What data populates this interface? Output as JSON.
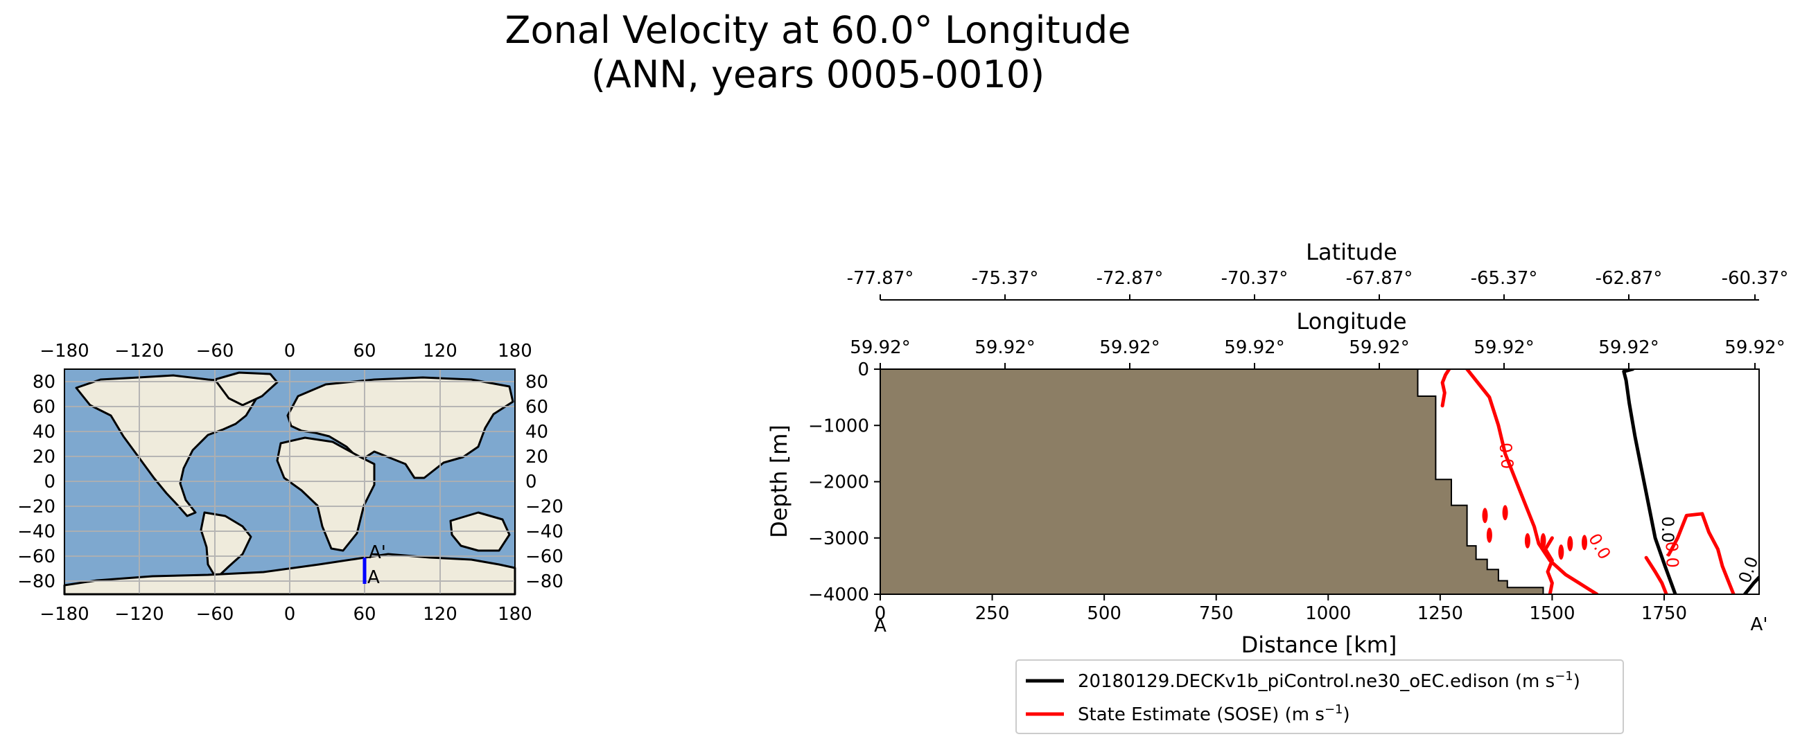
{
  "title": {
    "line1": "Zonal Velocity at 60.0° Longitude",
    "line2": "(ANN, years 0005-0010)"
  },
  "colors": {
    "ocean": "#7ea8cf",
    "land": "#efebdc",
    "transect": "#0000ff",
    "seafloor": "#8c7e65",
    "model_contour": "#000000",
    "obs_contour": "#ff0000",
    "grid": "#b0b0b0"
  },
  "map": {
    "x_ticks": [
      "−180",
      "−120",
      "−60",
      "0",
      "60",
      "120",
      "180"
    ],
    "y_ticks": [
      "80",
      "60",
      "40",
      "20",
      "0",
      "−20",
      "−40",
      "−60",
      "−80"
    ],
    "transect_start_label": "A",
    "transect_end_label": "A'",
    "transect_lon": 60,
    "transect_lat_start": -77.87,
    "transect_lat_end": -60.37
  },
  "chart_data": {
    "type": "contour-section",
    "xlabel": "Distance [km]",
    "ylabel": "Depth [m]",
    "xlim": [
      0,
      1962
    ],
    "ylim": [
      -4000,
      0
    ],
    "x_ticks": [
      "0",
      "250",
      "500",
      "750",
      "1000",
      "1250",
      "1500",
      "1750"
    ],
    "x_tick_values": [
      0,
      250,
      500,
      750,
      1000,
      1250,
      1500,
      1750
    ],
    "y_ticks": [
      "0",
      "−1000",
      "−2000",
      "−3000",
      "−4000"
    ],
    "y_tick_values": [
      0,
      -1000,
      -2000,
      -3000,
      -4000
    ],
    "endpoint_start": "A",
    "endpoint_end": "A'",
    "latitude_axis": {
      "label": "Latitude",
      "ticks": [
        "-77.87°",
        "-75.37°",
        "-72.87°",
        "-70.37°",
        "-67.87°",
        "-65.37°",
        "-62.87°",
        "-60.37°"
      ]
    },
    "longitude_axis": {
      "label": "Longitude",
      "ticks": [
        "59.92°",
        "59.92°",
        "59.92°",
        "59.92°",
        "59.92°",
        "59.92°",
        "59.92°",
        "59.92°"
      ]
    },
    "bathymetry": [
      [
        1200,
        0
      ],
      [
        1200,
        -480
      ],
      [
        1240,
        -480
      ],
      [
        1240,
        -1960
      ],
      [
        1275,
        -1960
      ],
      [
        1275,
        -2420
      ],
      [
        1310,
        -2420
      ],
      [
        1310,
        -3140
      ],
      [
        1330,
        -3140
      ],
      [
        1330,
        -3380
      ],
      [
        1355,
        -3380
      ],
      [
        1355,
        -3560
      ],
      [
        1380,
        -3560
      ],
      [
        1380,
        -3760
      ],
      [
        1400,
        -3760
      ],
      [
        1400,
        -3880
      ],
      [
        1480,
        -3880
      ],
      [
        1480,
        -4000
      ]
    ],
    "series": [
      {
        "name": "20180129.DECKv1b_piControl.ne30_oEC.edison (m s",
        "units_exp": "−1",
        "units_close": ")",
        "color": "#000000",
        "contour_level": "0.0",
        "lines": [
          [
            [
              1680,
              0
            ],
            [
              1660,
              -40
            ],
            [
              1665,
              -200
            ],
            [
              1672,
              -600
            ],
            [
              1685,
              -1200
            ],
            [
              1700,
              -1800
            ],
            [
              1715,
              -2400
            ],
            [
              1730,
              -3000
            ],
            [
              1752,
              -3500
            ],
            [
              1775,
              -4000
            ]
          ],
          [
            [
              1930,
              -4000
            ],
            [
              1950,
              -3800
            ],
            [
              1962,
              -3700
            ]
          ]
        ]
      },
      {
        "name": "State Estimate (SOSE) (m s",
        "units_exp": "−1",
        "units_close": ")",
        "color": "#ff0000",
        "contour_level": "0.0",
        "lines": [
          [
            [
              1270,
              0
            ],
            [
              1262,
              -100
            ],
            [
              1255,
              -240
            ],
            [
              1260,
              -420
            ],
            [
              1255,
              -650
            ]
          ],
          [
            [
              1310,
              0
            ],
            [
              1330,
              -200
            ],
            [
              1360,
              -500
            ],
            [
              1380,
              -1000
            ],
            [
              1395,
              -1500
            ],
            [
              1420,
              -2000
            ],
            [
              1440,
              -2400
            ],
            [
              1460,
              -2800
            ],
            [
              1470,
              -3100
            ],
            [
              1495,
              -3400
            ],
            [
              1530,
              -3650
            ],
            [
              1560,
              -3800
            ],
            [
              1600,
              -4000
            ]
          ],
          [
            [
              1500,
              -3000
            ],
            [
              1485,
              -3200
            ],
            [
              1500,
              -3400
            ],
            [
              1490,
              -3600
            ],
            [
              1500,
              -3800
            ],
            [
              1495,
              -4000
            ]
          ],
          [
            [
              1710,
              -3350
            ],
            [
              1730,
              -3600
            ],
            [
              1745,
              -3800
            ],
            [
              1755,
              -4000
            ]
          ],
          [
            [
              1760,
              -3300
            ],
            [
              1780,
              -3000
            ],
            [
              1800,
              -2600
            ],
            [
              1835,
              -2570
            ],
            [
              1850,
              -2900
            ],
            [
              1870,
              -3200
            ],
            [
              1880,
              -3500
            ],
            [
              1895,
              -3800
            ],
            [
              1905,
              -4000
            ]
          ]
        ],
        "blobs": [
          [
            1395,
            -2550
          ],
          [
            1360,
            -2950
          ],
          [
            1445,
            -3050
          ],
          [
            1480,
            -3050
          ],
          [
            1540,
            -3100
          ],
          [
            1572,
            -3080
          ],
          [
            1520,
            -3250
          ],
          [
            1350,
            -2600
          ]
        ]
      }
    ]
  }
}
